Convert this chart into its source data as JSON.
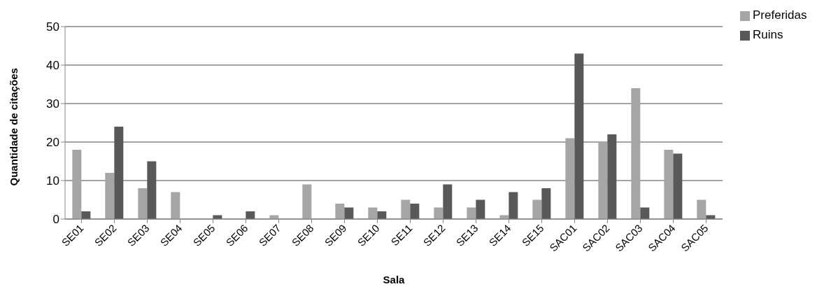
{
  "chart_data": {
    "type": "bar",
    "xlabel": "Sala",
    "ylabel": "Quantidade de citações",
    "categories": [
      "SE01",
      "SE02",
      "SE03",
      "SE04",
      "SE05",
      "SE06",
      "SE07",
      "SE08",
      "SE09",
      "SE10",
      "SE11",
      "SE12",
      "SE13",
      "SE14",
      "SE15",
      "SAC01",
      "SAC02",
      "SAC03",
      "SAC04",
      "SAC05"
    ],
    "series": [
      {
        "name": "Preferidas",
        "color": "#a6a6a6",
        "values": [
          18,
          12,
          8,
          7,
          0,
          0,
          1,
          9,
          4,
          3,
          5,
          3,
          3,
          1,
          5,
          21,
          20,
          34,
          18,
          5
        ]
      },
      {
        "name": "Ruins",
        "color": "#595959",
        "values": [
          2,
          24,
          15,
          0,
          1,
          2,
          0,
          0,
          3,
          2,
          4,
          9,
          5,
          7,
          8,
          43,
          22,
          3,
          17,
          1
        ]
      }
    ],
    "ylim": [
      0,
      50
    ],
    "yticks": [
      0,
      10,
      20,
      30,
      40,
      50
    ],
    "grid": "y",
    "legend": "top right"
  }
}
